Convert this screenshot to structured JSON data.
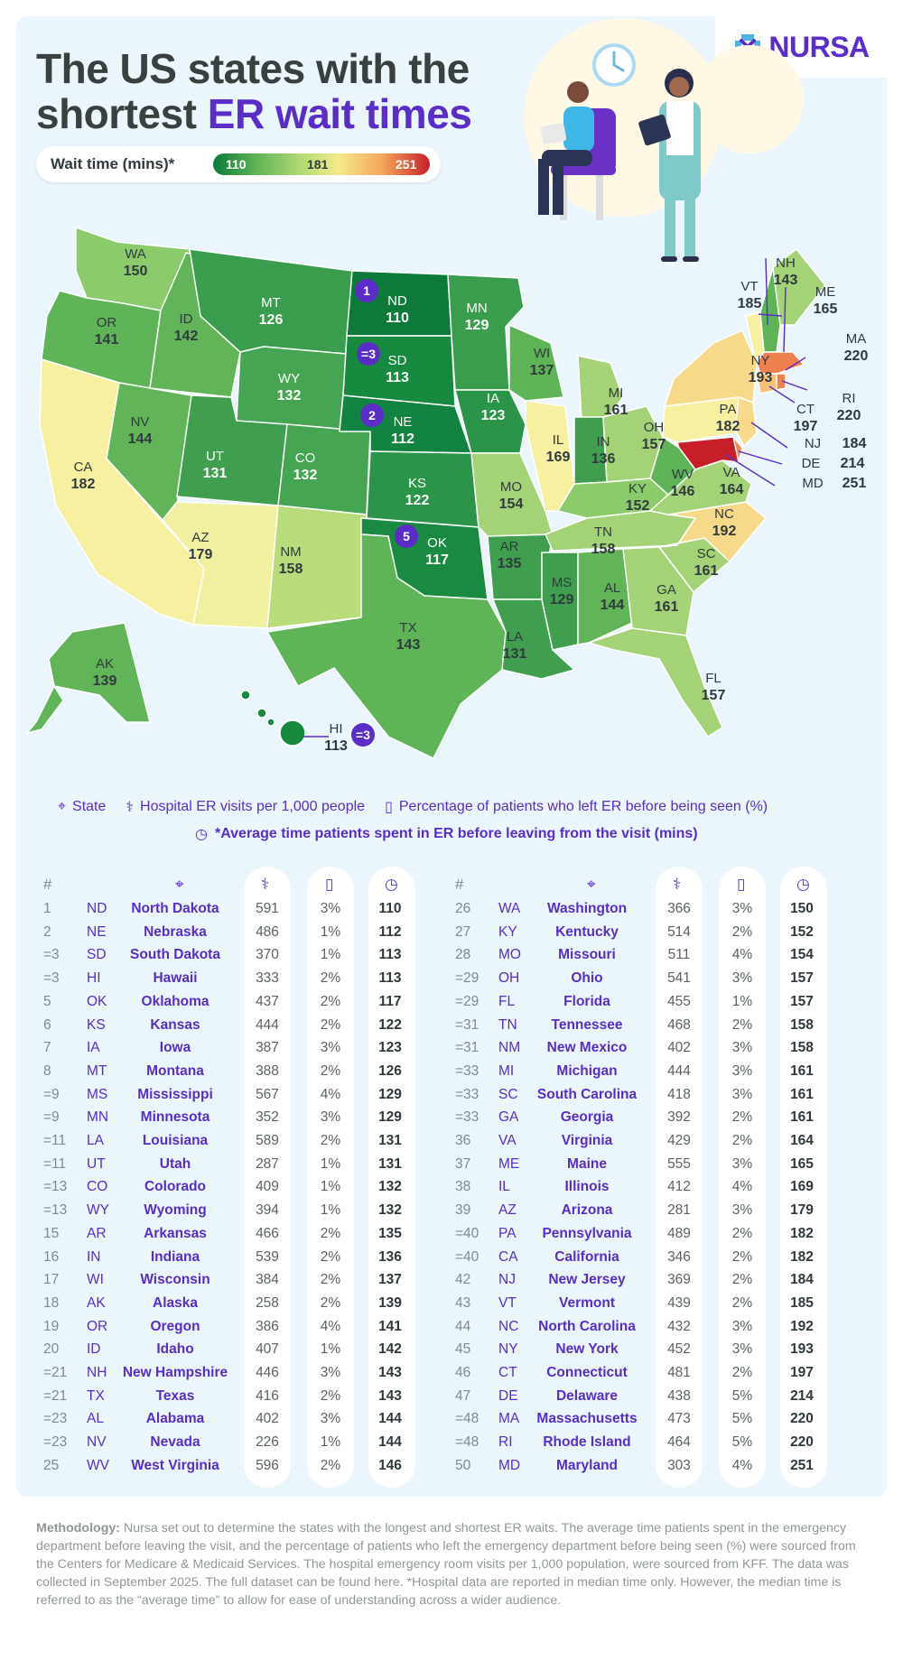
{
  "title": {
    "line1": "The US states with the",
    "line2_plain": "shortest",
    "line2_accent": "ER wait times"
  },
  "logo": {
    "text": "NURSA",
    "icon": "nursa-logo-icon"
  },
  "legend": {
    "label": "Wait time (mins)*",
    "min": "110",
    "mid": "181",
    "max": "251"
  },
  "colors": {
    "brand": "#5a2cc8",
    "low": "#0e7a3a",
    "mid": "#f5e98a",
    "high": "#c81e2a",
    "panel": "#eaf6fc"
  },
  "map": {
    "states": [
      {
        "abbr": "WA",
        "wait": "150"
      },
      {
        "abbr": "OR",
        "wait": "141"
      },
      {
        "abbr": "CA",
        "wait": "182"
      },
      {
        "abbr": "ID",
        "wait": "142"
      },
      {
        "abbr": "NV",
        "wait": "144"
      },
      {
        "abbr": "MT",
        "wait": "126"
      },
      {
        "abbr": "WY",
        "wait": "132"
      },
      {
        "abbr": "UT",
        "wait": "131"
      },
      {
        "abbr": "AZ",
        "wait": "179"
      },
      {
        "abbr": "CO",
        "wait": "132"
      },
      {
        "abbr": "NM",
        "wait": "158"
      },
      {
        "abbr": "ND",
        "wait": "110",
        "rank": "1"
      },
      {
        "abbr": "SD",
        "wait": "113",
        "rank": "=3"
      },
      {
        "abbr": "NE",
        "wait": "112",
        "rank": "2"
      },
      {
        "abbr": "KS",
        "wait": "122"
      },
      {
        "abbr": "OK",
        "wait": "117",
        "rank": "5"
      },
      {
        "abbr": "TX",
        "wait": "143"
      },
      {
        "abbr": "MN",
        "wait": "129"
      },
      {
        "abbr": "IA",
        "wait": "123"
      },
      {
        "abbr": "MO",
        "wait": "154"
      },
      {
        "abbr": "AR",
        "wait": "135"
      },
      {
        "abbr": "LA",
        "wait": "131"
      },
      {
        "abbr": "WI",
        "wait": "137"
      },
      {
        "abbr": "IL",
        "wait": "169"
      },
      {
        "abbr": "MI",
        "wait": "161"
      },
      {
        "abbr": "IN",
        "wait": "136"
      },
      {
        "abbr": "OH",
        "wait": "157"
      },
      {
        "abbr": "KY",
        "wait": "152"
      },
      {
        "abbr": "TN",
        "wait": "158"
      },
      {
        "abbr": "MS",
        "wait": "129"
      },
      {
        "abbr": "AL",
        "wait": "144"
      },
      {
        "abbr": "GA",
        "wait": "161"
      },
      {
        "abbr": "FL",
        "wait": "157"
      },
      {
        "abbr": "SC",
        "wait": "161"
      },
      {
        "abbr": "NC",
        "wait": "192"
      },
      {
        "abbr": "VA",
        "wait": "164"
      },
      {
        "abbr": "WV",
        "wait": "146"
      },
      {
        "abbr": "PA",
        "wait": "182"
      },
      {
        "abbr": "NY",
        "wait": "193"
      },
      {
        "abbr": "VT",
        "wait": "185"
      },
      {
        "abbr": "NH",
        "wait": "143"
      },
      {
        "abbr": "ME",
        "wait": "165"
      },
      {
        "abbr": "MA",
        "wait": "220"
      },
      {
        "abbr": "RI",
        "wait": "220"
      },
      {
        "abbr": "CT",
        "wait": "197"
      },
      {
        "abbr": "NJ",
        "wait": "184"
      },
      {
        "abbr": "DE",
        "wait": "214"
      },
      {
        "abbr": "MD",
        "wait": "251"
      },
      {
        "abbr": "AK",
        "wait": "139"
      },
      {
        "abbr": "HI",
        "wait": "113",
        "rank": "=3"
      }
    ]
  },
  "key": {
    "state": "State",
    "visits": "Hospital ER visits per 1,000 people",
    "left": "Percentage of patients who left ER before being seen (%)",
    "time": "*Average time patients spent in ER before leaving from the visit (mins)",
    "icons": {
      "state": "pin-icon",
      "visits": "stethoscope-icon",
      "left": "door-icon",
      "time": "clock-icon"
    }
  },
  "table": {
    "rank_header": "#",
    "left": [
      [
        "1",
        "ND",
        "North Dakota",
        "591",
        "3%",
        "110"
      ],
      [
        "2",
        "NE",
        "Nebraska",
        "486",
        "1%",
        "112"
      ],
      [
        "=3",
        "SD",
        "South Dakota",
        "370",
        "1%",
        "113"
      ],
      [
        "=3",
        "HI",
        "Hawaii",
        "333",
        "2%",
        "113"
      ],
      [
        "5",
        "OK",
        "Oklahoma",
        "437",
        "2%",
        "117"
      ],
      [
        "6",
        "KS",
        "Kansas",
        "444",
        "2%",
        "122"
      ],
      [
        "7",
        "IA",
        "Iowa",
        "387",
        "3%",
        "123"
      ],
      [
        "8",
        "MT",
        "Montana",
        "388",
        "2%",
        "126"
      ],
      [
        "=9",
        "MS",
        "Mississippi",
        "567",
        "4%",
        "129"
      ],
      [
        "=9",
        "MN",
        "Minnesota",
        "352",
        "3%",
        "129"
      ],
      [
        "=11",
        "LA",
        "Louisiana",
        "589",
        "2%",
        "131"
      ],
      [
        "=11",
        "UT",
        "Utah",
        "287",
        "1%",
        "131"
      ],
      [
        "=13",
        "CO",
        "Colorado",
        "409",
        "1%",
        "132"
      ],
      [
        "=13",
        "WY",
        "Wyoming",
        "394",
        "1%",
        "132"
      ],
      [
        "15",
        "AR",
        "Arkansas",
        "466",
        "2%",
        "135"
      ],
      [
        "16",
        "IN",
        "Indiana",
        "539",
        "2%",
        "136"
      ],
      [
        "17",
        "WI",
        "Wisconsin",
        "384",
        "2%",
        "137"
      ],
      [
        "18",
        "AK",
        "Alaska",
        "258",
        "2%",
        "139"
      ],
      [
        "19",
        "OR",
        "Oregon",
        "386",
        "4%",
        "141"
      ],
      [
        "20",
        "ID",
        "Idaho",
        "407",
        "1%",
        "142"
      ],
      [
        "=21",
        "NH",
        "New Hampshire",
        "446",
        "3%",
        "143"
      ],
      [
        "=21",
        "TX",
        "Texas",
        "416",
        "2%",
        "143"
      ],
      [
        "=23",
        "AL",
        "Alabama",
        "402",
        "3%",
        "144"
      ],
      [
        "=23",
        "NV",
        "Nevada",
        "226",
        "1%",
        "144"
      ],
      [
        "25",
        "WV",
        "West Virginia",
        "596",
        "2%",
        "146"
      ]
    ],
    "right": [
      [
        "26",
        "WA",
        "Washington",
        "366",
        "3%",
        "150"
      ],
      [
        "27",
        "KY",
        "Kentucky",
        "514",
        "2%",
        "152"
      ],
      [
        "28",
        "MO",
        "Missouri",
        "511",
        "4%",
        "154"
      ],
      [
        "=29",
        "OH",
        "Ohio",
        "541",
        "3%",
        "157"
      ],
      [
        "=29",
        "FL",
        "Florida",
        "455",
        "1%",
        "157"
      ],
      [
        "=31",
        "TN",
        "Tennessee",
        "468",
        "2%",
        "158"
      ],
      [
        "=31",
        "NM",
        "New Mexico",
        "402",
        "3%",
        "158"
      ],
      [
        "=33",
        "MI",
        "Michigan",
        "444",
        "3%",
        "161"
      ],
      [
        "=33",
        "SC",
        "South Carolina",
        "418",
        "3%",
        "161"
      ],
      [
        "=33",
        "GA",
        "Georgia",
        "392",
        "2%",
        "161"
      ],
      [
        "36",
        "VA",
        "Virginia",
        "429",
        "2%",
        "164"
      ],
      [
        "37",
        "ME",
        "Maine",
        "555",
        "3%",
        "165"
      ],
      [
        "38",
        "IL",
        "Illinois",
        "412",
        "4%",
        "169"
      ],
      [
        "39",
        "AZ",
        "Arizona",
        "281",
        "3%",
        "179"
      ],
      [
        "=40",
        "PA",
        "Pennsylvania",
        "489",
        "2%",
        "182"
      ],
      [
        "=40",
        "CA",
        "California",
        "346",
        "2%",
        "182"
      ],
      [
        "42",
        "NJ",
        "New Jersey",
        "369",
        "2%",
        "184"
      ],
      [
        "43",
        "VT",
        "Vermont",
        "439",
        "2%",
        "185"
      ],
      [
        "44",
        "NC",
        "North Carolina",
        "432",
        "3%",
        "192"
      ],
      [
        "45",
        "NY",
        "New York",
        "452",
        "3%",
        "193"
      ],
      [
        "46",
        "CT",
        "Connecticut",
        "481",
        "2%",
        "197"
      ],
      [
        "47",
        "DE",
        "Delaware",
        "438",
        "5%",
        "214"
      ],
      [
        "=48",
        "MA",
        "Massachusetts",
        "473",
        "5%",
        "220"
      ],
      [
        "=48",
        "RI",
        "Rhode Island",
        "464",
        "5%",
        "220"
      ],
      [
        "50",
        "MD",
        "Maryland",
        "303",
        "4%",
        "251"
      ]
    ]
  },
  "methodology": {
    "label": "Methodology:",
    "text": " Nursa set out to determine the states with the longest and shortest ER waits. The average time patients spent in the emergency department before leaving the visit, and the percentage of patients who left the emergency department before being seen (%) were sourced from the Centers for Medicare & Medicaid Services. The hospital emergency room visits per 1,000 population, were sourced from KFF. The data was collected in September 2025. The full dataset can be found here. *Hospital data are reported in median time only. However, the median time is referred to as the “average time” to allow for ease of understanding across a wider audience."
  }
}
